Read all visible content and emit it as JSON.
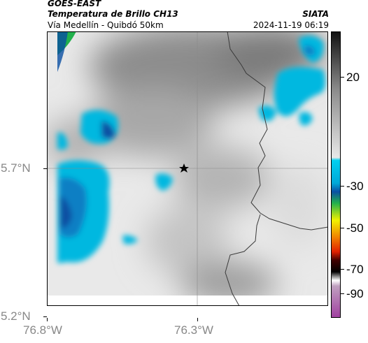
{
  "header": {
    "satellite": "GOES-EAST",
    "product": "Temperatura de Brillo CH13",
    "region": "Vía Medellín - Quibdó 50km",
    "org": "SIATA",
    "datetime": "2024-11-19 06:19"
  },
  "map": {
    "lat_ticks": [
      "5.7°N",
      "5.2°N"
    ],
    "lon_ticks": [
      "76.8°W",
      "76.3°W"
    ],
    "marker": "star",
    "boundary_color": "#3a3a3a",
    "gridline_color": "#8a8a8a"
  },
  "colorbar": {
    "labels": [
      "20",
      "-30",
      "-50",
      "-70",
      "-90"
    ],
    "colors": {
      "warm_top": "#111111",
      "gray_mid": "#9a9a9a",
      "cyan": "#00c8e6",
      "blue": "#0a4fa3",
      "green": "#22b14c",
      "yellow": "#f2f200",
      "red": "#e02000",
      "black": "#000000",
      "purple": "#a040a0"
    }
  }
}
